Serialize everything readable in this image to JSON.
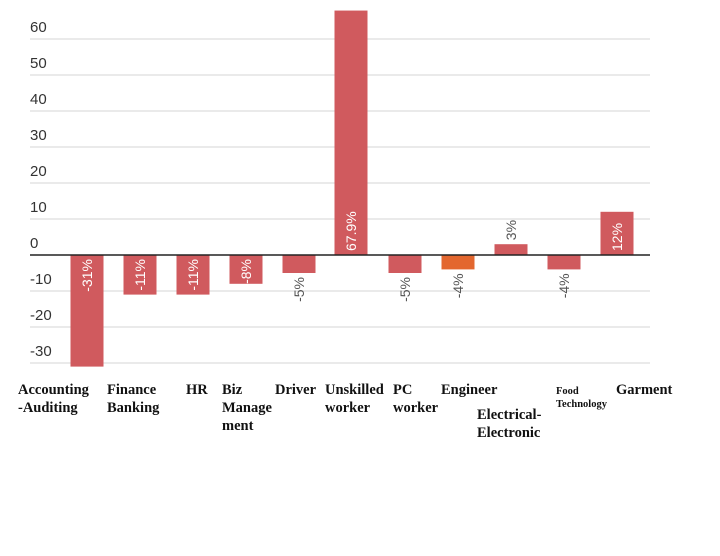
{
  "chart_data": {
    "type": "bar",
    "title": "",
    "xlabel": "",
    "ylabel": "",
    "ylim": [
      -30,
      60
    ],
    "yticks": [
      60,
      50,
      40,
      30,
      20,
      10,
      0,
      -10,
      -20,
      -30
    ],
    "grid": true,
    "legend": "none",
    "colors": {
      "bar": "#d05a5e",
      "highlight_bar": "#e3672f",
      "label_on_bar": "#ffffff",
      "label_off_bar": "#555555"
    },
    "categories": [
      "Accounting-Auditing",
      "Finance Banking",
      "HR",
      "Biz Management",
      "Driver",
      "Unskilled worker",
      "PC worker",
      "Engineer",
      "Electrical-Electronic",
      "Food Technology",
      "Garment"
    ],
    "values": [
      -31,
      -11,
      -11,
      -8,
      -5,
      67.9,
      -5,
      -4,
      3,
      -4,
      12
    ],
    "data_labels": [
      "-31%",
      "-11%",
      "-11%",
      "-8%",
      "-5%",
      "67.9%",
      "-5%",
      "-4%",
      "3%",
      "-4%",
      "12%"
    ]
  }
}
